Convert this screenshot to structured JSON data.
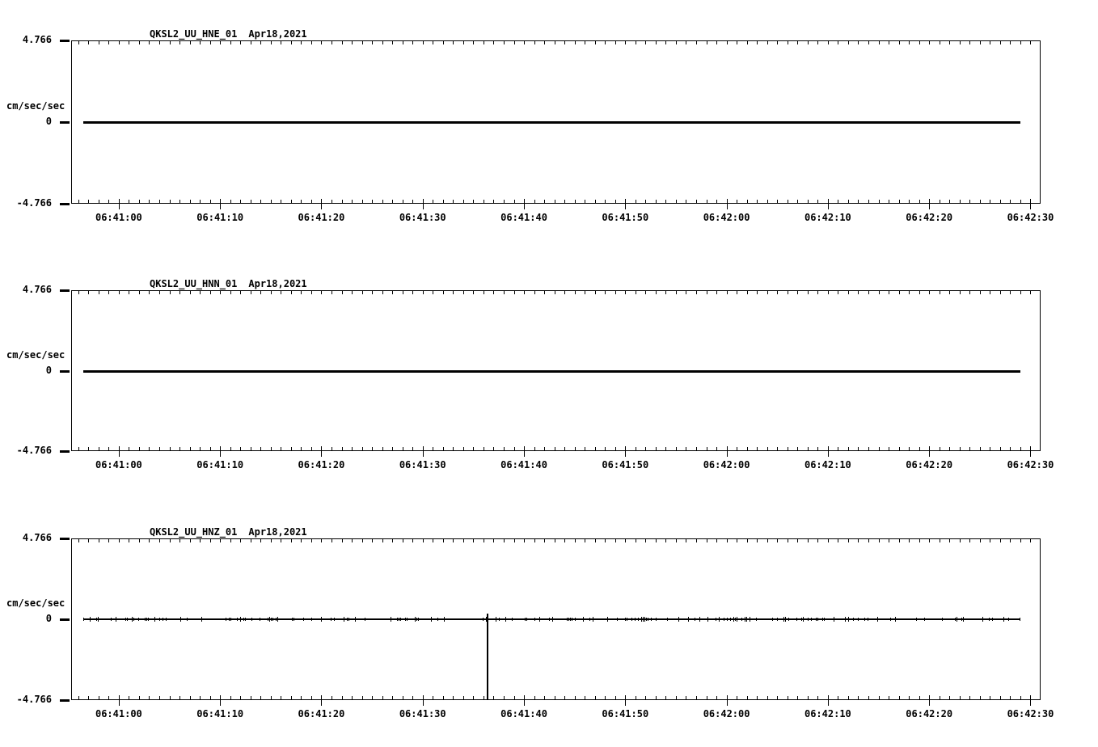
{
  "page": {
    "background": "#ffffff",
    "ink": "#000000"
  },
  "chart_data": [
    {
      "type": "line",
      "title": "QKSL2_UU_HNE_01",
      "date_label": "Apr18,2021",
      "ylabel": "cm/sec/sec",
      "ylim": [
        -4.766,
        4.766
      ],
      "y_tick_labels": [
        "4.766",
        "0",
        "-4.766"
      ],
      "y_tick_values": [
        4.766,
        0,
        -4.766
      ],
      "x_tick_labels": [
        "06:41:00",
        "06:41:10",
        "06:41:20",
        "06:41:30",
        "06:41:40",
        "06:41:50",
        "06:42:00",
        "06:42:10",
        "06:42:20",
        "06:42:30"
      ],
      "x_tick_offsets_s": [
        0,
        10,
        20,
        30,
        40,
        50,
        60,
        70,
        80,
        90
      ],
      "x_minor_step_s": 1,
      "grid": false,
      "legend": "none",
      "series": [
        {
          "name": "HNE",
          "baseline_value": 0,
          "start_offset_s": -3.5,
          "end_offset_s": 89.0,
          "noise_amplitude": 0.0,
          "spikes": []
        }
      ]
    },
    {
      "type": "line",
      "title": "QKSL2_UU_HNN_01",
      "date_label": "Apr18,2021",
      "ylabel": "cm/sec/sec",
      "ylim": [
        -4.766,
        4.766
      ],
      "y_tick_labels": [
        "4.766",
        "0",
        "-4.766"
      ],
      "y_tick_values": [
        4.766,
        0,
        -4.766
      ],
      "x_tick_labels": [
        "06:41:00",
        "06:41:10",
        "06:41:20",
        "06:41:30",
        "06:41:40",
        "06:41:50",
        "06:42:00",
        "06:42:10",
        "06:42:20",
        "06:42:30"
      ],
      "x_tick_offsets_s": [
        0,
        10,
        20,
        30,
        40,
        50,
        60,
        70,
        80,
        90
      ],
      "x_minor_step_s": 1,
      "grid": false,
      "legend": "none",
      "series": [
        {
          "name": "HNN",
          "baseline_value": 0,
          "start_offset_s": -3.5,
          "end_offset_s": 89.0,
          "noise_amplitude": 0.0,
          "spikes": []
        }
      ]
    },
    {
      "type": "line",
      "title": "QKSL2_UU_HNZ_01",
      "date_label": "Apr18,2021",
      "ylabel": "cm/sec/sec",
      "ylim": [
        -4.766,
        4.766
      ],
      "y_tick_labels": [
        "4.766",
        "0",
        "-4.766"
      ],
      "y_tick_values": [
        4.766,
        0,
        -4.766
      ],
      "x_tick_labels": [
        "06:41:00",
        "06:41:10",
        "06:41:20",
        "06:41:30",
        "06:41:40",
        "06:41:50",
        "06:42:00",
        "06:42:10",
        "06:42:20",
        "06:42:30"
      ],
      "x_tick_offsets_s": [
        0,
        10,
        20,
        30,
        40,
        50,
        60,
        70,
        80,
        90
      ],
      "x_minor_step_s": 1,
      "grid": false,
      "legend": "none",
      "series": [
        {
          "name": "HNZ",
          "baseline_value": 0,
          "start_offset_s": -3.5,
          "end_offset_s": 89.0,
          "noise_amplitude": 0.12,
          "spikes": [
            {
              "time_label": "06:41:36",
              "offset_s": 36.4,
              "min_value": -4.766,
              "max_value": 0.3
            }
          ]
        }
      ]
    }
  ]
}
